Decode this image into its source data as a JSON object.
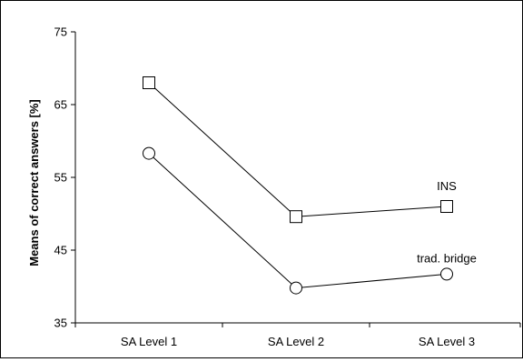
{
  "chart_data": {
    "type": "line",
    "title": "",
    "xlabel": "",
    "ylabel": "Means of correct answers [%]",
    "categories": [
      "SA Level 1",
      "SA Level 2",
      "SA Level 3"
    ],
    "ylim": [
      35,
      75
    ],
    "yticks": [
      35,
      45,
      55,
      65,
      75
    ],
    "grid": false,
    "legend": "none",
    "series": [
      {
        "name": "INS",
        "marker": "square",
        "values": [
          68.0,
          49.6,
          51.0
        ]
      },
      {
        "name": "trad. bridge",
        "marker": "circle",
        "values": [
          58.3,
          39.8,
          41.7
        ]
      }
    ]
  }
}
